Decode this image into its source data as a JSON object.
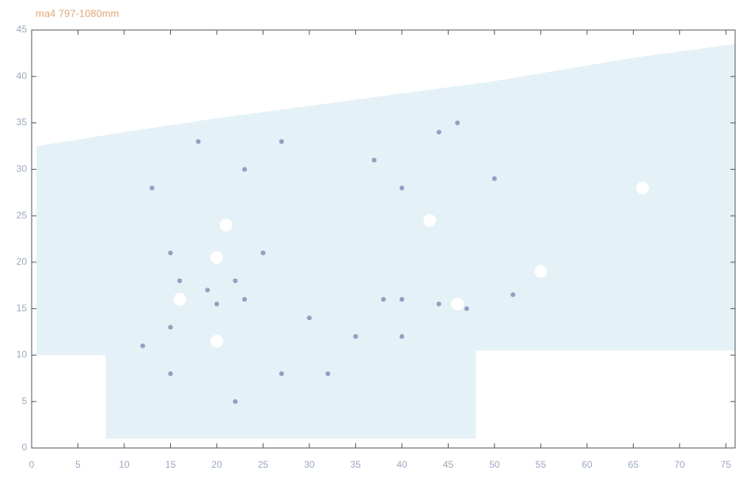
{
  "chart_data": {
    "type": "region",
    "title": "ma4   797-1080mm",
    "xlim": [
      0,
      76
    ],
    "ylim": [
      0,
      45
    ],
    "xticks": [
      0,
      5,
      10,
      15,
      20,
      25,
      30,
      35,
      40,
      45,
      50,
      55,
      60,
      65,
      70,
      75
    ],
    "yticks": [
      0,
      5,
      10,
      15,
      20,
      25,
      30,
      35,
      40,
      45
    ],
    "outline": {
      "color": "#e4f1f7",
      "x": [
        0.5,
        0.5,
        10,
        20,
        35,
        50,
        65,
        76,
        76,
        48,
        48,
        8,
        8
      ],
      "y": [
        10,
        32.5,
        34,
        35.5,
        37.5,
        39.5,
        42,
        43.5,
        10.5,
        10.5,
        1,
        1,
        10
      ]
    },
    "series": [
      {
        "color": "#6f7fa8",
        "x": [
          15,
          16,
          19,
          20,
          22,
          23,
          25,
          27,
          27,
          15,
          15,
          12,
          30,
          38,
          40,
          44,
          47,
          50,
          52,
          40,
          44,
          46,
          18,
          23,
          13,
          35,
          40,
          37,
          32,
          22
        ],
        "y": [
          21,
          18,
          17,
          15.5,
          18,
          16,
          21,
          8,
          33,
          8,
          13,
          11,
          14,
          16,
          16,
          15.5,
          15,
          29,
          16.5,
          28,
          34,
          35,
          33,
          30,
          28,
          12,
          12,
          31,
          8,
          5
        ]
      },
      {
        "color": "#ffffff",
        "x": [
          21,
          16,
          20,
          43,
          46,
          55,
          66,
          20
        ],
        "y": [
          24,
          16,
          11.5,
          24.5,
          15.5,
          19,
          28,
          20.5
        ]
      }
    ]
  }
}
